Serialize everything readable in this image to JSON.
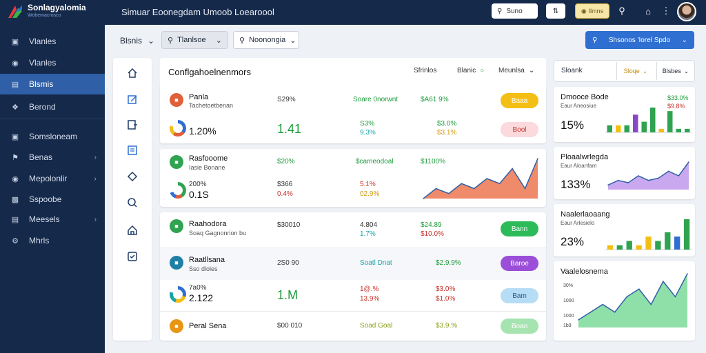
{
  "app": {
    "name": "Sonlagyalomia",
    "tagline": "Wobemacrosco",
    "window_title": "Simuar Eoonegdam  Umoob Loearoool"
  },
  "topbar": {
    "search_placeholder": "Suno",
    "gold_label": "Ilmns",
    "icons": [
      "search-icon",
      "home-icon",
      "more-icon"
    ]
  },
  "sidebar": {
    "items": [
      {
        "label": "Vlanles",
        "icon": "monitor-icon"
      },
      {
        "label": "Vlanles",
        "icon": "tag-icon"
      },
      {
        "label": "Blsmis",
        "icon": "chart-icon",
        "active": true
      },
      {
        "label": "Berond",
        "icon": "pin-icon"
      },
      {
        "label": "Somsloneam",
        "icon": "window-icon"
      },
      {
        "label": "Benas",
        "icon": "flag-icon",
        "chevron": true
      },
      {
        "label": "Mepolonlir",
        "icon": "disk-icon",
        "chevron": true
      },
      {
        "label": "Sspoobe",
        "icon": "book-icon"
      },
      {
        "label": "Meesels",
        "icon": "folder-icon",
        "chevron": true
      },
      {
        "label": "Mhrls",
        "icon": "gear-icon"
      }
    ]
  },
  "filters": {
    "label": "Blsnis",
    "select1": "Tlanlsoe",
    "select2": "Noonongia",
    "primary": "Shsonos 'Iorel Spdo"
  },
  "rail_icons": [
    "home-icon",
    "edit-icon",
    "export-icon",
    "calendar-icon",
    "tag-icon",
    "search-icon",
    "building-icon",
    "checklist-icon"
  ],
  "panel": {
    "title": "Conflgahoelnenmors",
    "h1": "Sfrinlos",
    "h2": "Blanic",
    "h3": "Meunlsa"
  },
  "rows": [
    {
      "name": "Panla",
      "sub": "Tachetoetbenan",
      "c1": "S29%",
      "c2": "Soare 0norwnt",
      "c3": "$A61 9%",
      "pill": "Baaa",
      "pill_color": "#f4bf14",
      "ring_big": "1.20%",
      "bigv": "1.41",
      "a1": "S3%",
      "a2": "9.3%",
      "b1": "$3.0%",
      "b2": "$3.1%",
      "pill2": "Bool",
      "pill2_color": "#fbd9dc"
    },
    {
      "name": "Rasfooome",
      "sub": "Iasie Bonane",
      "c1": "$20%",
      "c2": "$cameodoal",
      "c3": "$1100%",
      "ring_big": "0.1S",
      "top_small": "200%",
      "a1": "$366",
      "a2": "0.4%",
      "b1": "5.1%",
      "b2": "02.9%"
    },
    {
      "name": "Raahodora",
      "sub": "Soaq Gagnonrion bu",
      "c1": "$30010",
      "c2": "4.804",
      "c2b": "1.7%",
      "c3": "$24.89",
      "c3b": "$10.0%",
      "pill": "Bann",
      "pill_color": "#2dbb5a"
    },
    {
      "name": "Raatllsana",
      "sub": "Sso dloles",
      "c1": "2S0 90",
      "c2": "Soatl Dnat",
      "c3": "$2.9.9%",
      "pill": "Baroe",
      "pill_color": "#9b4ed8"
    },
    {
      "name": "",
      "sub": "",
      "ring_top": "7a0%",
      "ring_big": "2.122",
      "bigv": "1.M",
      "a1": "1@.%",
      "a2": "13.9%",
      "b1": "$3.0%",
      "b2": "$1.0%",
      "pill": "Bam",
      "pill_color": "#b7dcf6"
    },
    {
      "name": "Peral Sena",
      "c1": "$00 010",
      "c2": "Soad Goal",
      "c3": "$3.9.%",
      "pill": "Boan",
      "pill_color": "#a5e3b0"
    }
  ],
  "side": {
    "header": "Sloank",
    "select1": "Sloqe",
    "select2": "Blsbes",
    "cards": [
      {
        "title": "Dmooce Bode",
        "sub": "Eaur Aneosiue",
        "big": "15%",
        "right1": "$33.0%",
        "right2": "$9.8%"
      },
      {
        "title": "Ploaalwrlegda",
        "sub": "Eaur Aloanfam",
        "big": "133%"
      },
      {
        "title": "Naalerlaoaang",
        "sub": "Eaur Arlesielo",
        "big": "23%"
      },
      {
        "title": "Vaalelosnema",
        "ticks": [
          "30%",
          "1000",
          "1000",
          "1b9"
        ]
      }
    ]
  },
  "chart_data": [
    {
      "type": "area",
      "title": "",
      "values": [
        0,
        2,
        1,
        3,
        2,
        4,
        3,
        6,
        2,
        8
      ],
      "color": "#ef8a6a"
    },
    {
      "type": "bar",
      "title": "Dmooce Bode",
      "values": [
        2,
        2,
        2,
        5,
        3,
        7,
        1,
        6,
        1,
        1
      ],
      "colors": [
        "#2fa34f",
        "#f4bf14",
        "#2fa34f",
        "#8a48c9",
        "#2fa34f",
        "#2fa34f",
        "#f4bf14",
        "#2fa34f",
        "#2fa34f",
        "#2fa34f"
      ]
    },
    {
      "type": "area",
      "title": "Ploaalwrlegda",
      "values": [
        1,
        2,
        1.5,
        3,
        2,
        2.5,
        4,
        3,
        6
      ],
      "color": "#c9a8ef"
    },
    {
      "type": "bar",
      "title": "Naalerlaoaang",
      "values": [
        1,
        1,
        2,
        1,
        3,
        2,
        4,
        3,
        7
      ],
      "colors": [
        "#f4bf14",
        "#2fa34f",
        "#2fa34f",
        "#f4bf14",
        "#f4bf14",
        "#2fa34f",
        "#2fa34f",
        "#2f6fd1",
        "#2fa34f"
      ]
    },
    {
      "type": "area",
      "title": "Vaalelosnema",
      "values": [
        1,
        2,
        3,
        2,
        4,
        5,
        3,
        6,
        4,
        7
      ],
      "color": "#8fe0a8"
    }
  ]
}
